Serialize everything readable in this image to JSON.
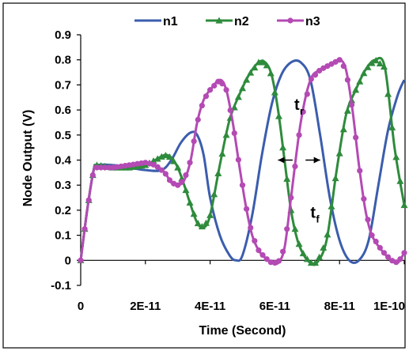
{
  "chart_data": {
    "type": "line",
    "title": "",
    "xlabel": "Time (Second)",
    "ylabel": "Node Output (V)",
    "xlim": [
      0,
      1e-10
    ],
    "ylim": [
      -0.1,
      0.9
    ],
    "x_ticks": [
      {
        "value": 0,
        "label": "0"
      },
      {
        "value": 2e-11,
        "label": "2E-11"
      },
      {
        "value": 4e-11,
        "label": "4E-11"
      },
      {
        "value": 6e-11,
        "label": "6E-11"
      },
      {
        "value": 8e-11,
        "label": "8E-11"
      },
      {
        "value": 1e-10,
        "label": "1E-10"
      }
    ],
    "y_ticks": [
      {
        "value": -0.1,
        "label": "-0.1"
      },
      {
        "value": 0,
        "label": "0"
      },
      {
        "value": 0.1,
        "label": "0.1"
      },
      {
        "value": 0.2,
        "label": "0.2"
      },
      {
        "value": 0.3,
        "label": "0.3"
      },
      {
        "value": 0.4,
        "label": "0.4"
      },
      {
        "value": 0.5,
        "label": "0.5"
      },
      {
        "value": 0.6,
        "label": "0.6"
      },
      {
        "value": 0.7,
        "label": "0.7"
      },
      {
        "value": 0.8,
        "label": "0.8"
      },
      {
        "value": 0.9,
        "label": "0.9"
      }
    ],
    "grid": false,
    "legend_position": "top",
    "series": [
      {
        "name": "n1",
        "color": "#3B5DAD",
        "marker": "none",
        "x": [
          0,
          2e-12,
          4e-12,
          5e-12,
          1e-11,
          1.5e-11,
          2e-11,
          2.5e-11,
          2.8e-11,
          3.1e-11,
          3.4e-11,
          3.6e-11,
          3.8e-11,
          4e-11,
          4.3e-11,
          4.6e-11,
          4.8e-11,
          5e-11,
          5.3e-11,
          5.6e-11,
          5.9e-11,
          6.2e-11,
          6.5e-11,
          6.8e-11,
          7.1e-11,
          7.4e-11,
          7.7e-11,
          8e-11,
          8.3e-11,
          8.6e-11,
          8.9e-11,
          9.2e-11,
          9.5e-11,
          9.8e-11,
          1e-10
        ],
        "y": [
          0,
          0.2,
          0.36,
          0.38,
          0.38,
          0.37,
          0.36,
          0.36,
          0.4,
          0.47,
          0.51,
          0.5,
          0.42,
          0.25,
          0.1,
          0.02,
          0.0,
          0.02,
          0.18,
          0.42,
          0.62,
          0.74,
          0.79,
          0.79,
          0.72,
          0.5,
          0.25,
          0.08,
          0.0,
          0.0,
          0.08,
          0.3,
          0.52,
          0.66,
          0.72
        ]
      },
      {
        "name": "n2",
        "color": "#2E8B3C",
        "marker": "triangle",
        "x": [
          0,
          2e-12,
          4e-12,
          5e-12,
          1e-11,
          1.5e-11,
          2e-11,
          2.3e-11,
          2.6e-11,
          2.8e-11,
          3e-11,
          3.2e-11,
          3.4e-11,
          3.6e-11,
          3.8e-11,
          4e-11,
          4.3e-11,
          4.6e-11,
          4.9e-11,
          5.2e-11,
          5.5e-11,
          5.7e-11,
          5.9e-11,
          6.1e-11,
          6.3e-11,
          6.5e-11,
          6.7e-11,
          6.9e-11,
          7.1e-11,
          7.3e-11,
          7.6e-11,
          7.9e-11,
          8.2e-11,
          8.5e-11,
          8.8e-11,
          9.1e-11,
          9.4e-11,
          9.7e-11,
          1e-10
        ],
        "y": [
          0,
          0.2,
          0.36,
          0.38,
          0.37,
          0.37,
          0.38,
          0.4,
          0.42,
          0.41,
          0.37,
          0.3,
          0.22,
          0.15,
          0.13,
          0.18,
          0.38,
          0.56,
          0.66,
          0.74,
          0.79,
          0.79,
          0.74,
          0.6,
          0.4,
          0.2,
          0.08,
          0.02,
          -0.01,
          -0.01,
          0.08,
          0.35,
          0.58,
          0.68,
          0.76,
          0.8,
          0.77,
          0.45,
          0.22
        ]
      },
      {
        "name": "n3",
        "color": "#B44AB4",
        "marker": "circle",
        "x": [
          0,
          2e-12,
          4e-12,
          5e-12,
          1e-11,
          1.5e-11,
          2e-11,
          2.3e-11,
          2.6e-11,
          2.8e-11,
          3e-11,
          3.2e-11,
          3.4e-11,
          3.6e-11,
          3.8e-11,
          4e-11,
          4.3e-11,
          4.5e-11,
          4.7e-11,
          4.9e-11,
          5.1e-11,
          5.3e-11,
          5.5e-11,
          5.7e-11,
          5.9e-11,
          6.1e-11,
          6.3e-11,
          6.5e-11,
          6.8e-11,
          7.1e-11,
          7.4e-11,
          7.7e-11,
          8e-11,
          8.2e-11,
          8.4e-11,
          8.6e-11,
          8.8e-11,
          9e-11,
          9.3e-11,
          9.6e-11,
          9.8e-11,
          1e-10
        ],
        "y": [
          0,
          0.2,
          0.36,
          0.37,
          0.37,
          0.38,
          0.39,
          0.38,
          0.35,
          0.31,
          0.3,
          0.32,
          0.4,
          0.55,
          0.64,
          0.68,
          0.72,
          0.68,
          0.55,
          0.38,
          0.22,
          0.1,
          0.04,
          0.01,
          -0.01,
          -0.01,
          0.05,
          0.25,
          0.55,
          0.72,
          0.76,
          0.78,
          0.8,
          0.76,
          0.6,
          0.38,
          0.2,
          0.1,
          0.04,
          0.0,
          -0.01,
          0.03
        ]
      }
    ],
    "annotations": [
      {
        "text": "t",
        "subscript": "r",
        "x": 6.6e-11,
        "y": 0.6
      },
      {
        "text": "t",
        "subscript": "f",
        "x": 7.1e-11,
        "y": 0.17
      }
    ],
    "arrows": [
      {
        "x_from": 6.55e-11,
        "x_to": 6.1e-11,
        "y": 0.4
      },
      {
        "x_from": 6.95e-11,
        "x_to": 7.4e-11,
        "y": 0.4
      }
    ]
  }
}
